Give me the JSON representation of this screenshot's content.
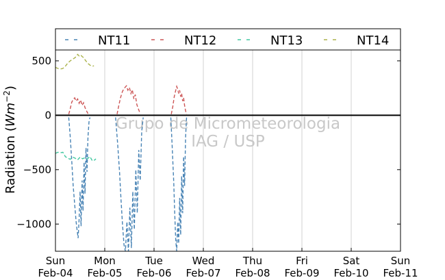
{
  "chart_data": {
    "type": "line",
    "ylabel": "Radiation (Wm^-2)",
    "ylabel_text": "Radiation",
    "ylabel_unit_base": "Wm",
    "ylabel_unit_exp": "−2",
    "ylim": [
      -1250,
      600
    ],
    "yticks": [
      {
        "value": 500,
        "label": "500"
      },
      {
        "value": 0,
        "label": "0"
      },
      {
        "value": -500,
        "label": "−500"
      },
      {
        "value": -1000,
        "label": "−1000"
      }
    ],
    "xlim": [
      0,
      7
    ],
    "xticks": [
      {
        "value": 0,
        "day": "Sun",
        "date": "Feb-04"
      },
      {
        "value": 1,
        "day": "Mon",
        "date": "Feb-05"
      },
      {
        "value": 2,
        "day": "Tue",
        "date": "Feb-06"
      },
      {
        "value": 3,
        "day": "Wed",
        "date": "Feb-07"
      },
      {
        "value": 4,
        "day": "Thu",
        "date": "Feb-08"
      },
      {
        "value": 5,
        "day": "Fri",
        "date": "Feb-09"
      },
      {
        "value": 6,
        "day": "Sat",
        "date": "Feb-10"
      },
      {
        "value": 7,
        "day": "Sun",
        "date": "Feb-11"
      }
    ],
    "grid": "vertical",
    "zero_line": true,
    "legend_position": "top",
    "watermark": [
      "Grupo de Micrometeorologia",
      "IAG / USP"
    ],
    "series": [
      {
        "name": "NT11",
        "color": "#4682b4",
        "segments": [
          [
            [
              0.27,
              -20
            ],
            [
              0.3,
              -200
            ],
            [
              0.33,
              -420
            ],
            [
              0.36,
              -650
            ],
            [
              0.39,
              -820
            ],
            [
              0.42,
              -980
            ],
            [
              0.44,
              -1060
            ],
            [
              0.46,
              -1130
            ],
            [
              0.48,
              -950
            ],
            [
              0.5,
              -700
            ],
            [
              0.52,
              -1020
            ],
            [
              0.54,
              -600
            ],
            [
              0.56,
              -880
            ],
            [
              0.58,
              -430
            ],
            [
              0.6,
              -720
            ],
            [
              0.62,
              -300
            ],
            [
              0.64,
              -520
            ],
            [
              0.66,
              -200
            ],
            [
              0.68,
              -60
            ],
            [
              0.7,
              -20
            ]
          ],
          [
            [
              1.22,
              -20
            ],
            [
              1.26,
              -250
            ],
            [
              1.3,
              -520
            ],
            [
              1.33,
              -780
            ],
            [
              1.36,
              -1000
            ],
            [
              1.39,
              -1190
            ],
            [
              1.42,
              -1250
            ],
            [
              1.45,
              -980
            ],
            [
              1.48,
              -1250
            ],
            [
              1.51,
              -850
            ],
            [
              1.54,
              -1220
            ],
            [
              1.57,
              -700
            ],
            [
              1.6,
              -1050
            ],
            [
              1.63,
              -500
            ],
            [
              1.66,
              -900
            ],
            [
              1.69,
              -320
            ],
            [
              1.72,
              -600
            ],
            [
              1.75,
              -150
            ],
            [
              1.78,
              -20
            ]
          ],
          [
            [
              2.34,
              -20
            ],
            [
              2.37,
              -300
            ],
            [
              2.4,
              -620
            ],
            [
              2.42,
              -900
            ],
            [
              2.44,
              -1150
            ],
            [
              2.46,
              -1250
            ],
            [
              2.48,
              -980
            ],
            [
              2.5,
              -1180
            ],
            [
              2.52,
              -760
            ],
            [
              2.54,
              -1100
            ],
            [
              2.56,
              -560
            ],
            [
              2.58,
              -900
            ],
            [
              2.6,
              -380
            ],
            [
              2.62,
              -650
            ],
            [
              2.64,
              -200
            ],
            [
              2.66,
              -20
            ]
          ]
        ]
      },
      {
        "name": "NT12",
        "color": "#cc5555",
        "segments": [
          [
            [
              0.27,
              10
            ],
            [
              0.3,
              60
            ],
            [
              0.33,
              120
            ],
            [
              0.36,
              145
            ],
            [
              0.39,
              160
            ],
            [
              0.42,
              130
            ],
            [
              0.45,
              150
            ],
            [
              0.48,
              110
            ],
            [
              0.51,
              140
            ],
            [
              0.54,
              90
            ],
            [
              0.57,
              115
            ],
            [
              0.6,
              70
            ],
            [
              0.63,
              40
            ],
            [
              0.66,
              15
            ]
          ],
          [
            [
              1.25,
              10
            ],
            [
              1.28,
              80
            ],
            [
              1.32,
              160
            ],
            [
              1.36,
              220
            ],
            [
              1.4,
              250
            ],
            [
              1.44,
              270
            ],
            [
              1.47,
              230
            ],
            [
              1.5,
              255
            ],
            [
              1.53,
              200
            ],
            [
              1.56,
              235
            ],
            [
              1.59,
              150
            ],
            [
              1.62,
              190
            ],
            [
              1.65,
              100
            ],
            [
              1.68,
              60
            ],
            [
              1.72,
              15
            ]
          ],
          [
            [
              2.35,
              10
            ],
            [
              2.38,
              80
            ],
            [
              2.41,
              170
            ],
            [
              2.44,
              230
            ],
            [
              2.46,
              265
            ],
            [
              2.48,
              240
            ],
            [
              2.5,
              200
            ],
            [
              2.52,
              230
            ],
            [
              2.54,
              170
            ],
            [
              2.56,
              200
            ],
            [
              2.58,
              130
            ],
            [
              2.6,
              160
            ],
            [
              2.62,
              90
            ],
            [
              2.64,
              40
            ],
            [
              2.66,
              10
            ]
          ]
        ]
      },
      {
        "name": "NT13",
        "color": "#40c8a0",
        "segments": [
          [
            [
              0.0,
              -350
            ],
            [
              0.05,
              -340
            ],
            [
              0.1,
              -345
            ],
            [
              0.15,
              -340
            ],
            [
              0.2,
              -380
            ],
            [
              0.25,
              -395
            ],
            [
              0.3,
              -405
            ],
            [
              0.35,
              -385
            ],
            [
              0.4,
              -395
            ],
            [
              0.45,
              -410
            ],
            [
              0.5,
              -385
            ],
            [
              0.55,
              -400
            ],
            [
              0.6,
              -390
            ],
            [
              0.65,
              -400
            ],
            [
              0.7,
              -380
            ],
            [
              0.75,
              -420
            ],
            [
              0.8,
              -410
            ],
            [
              0.82,
              -400
            ]
          ]
        ]
      },
      {
        "name": "NT14",
        "color": "#aab24a",
        "segments": [
          [
            [
              0.0,
              440
            ],
            [
              0.05,
              430
            ],
            [
              0.1,
              425
            ],
            [
              0.15,
              430
            ],
            [
              0.2,
              450
            ],
            [
              0.25,
              480
            ],
            [
              0.3,
              500
            ],
            [
              0.35,
              515
            ],
            [
              0.4,
              530
            ],
            [
              0.45,
              560
            ],
            [
              0.48,
              545
            ],
            [
              0.51,
              555
            ],
            [
              0.54,
              540
            ],
            [
              0.57,
              530
            ],
            [
              0.6,
              510
            ],
            [
              0.65,
              480
            ],
            [
              0.7,
              460
            ],
            [
              0.75,
              450
            ],
            [
              0.78,
              455
            ]
          ]
        ]
      }
    ]
  }
}
